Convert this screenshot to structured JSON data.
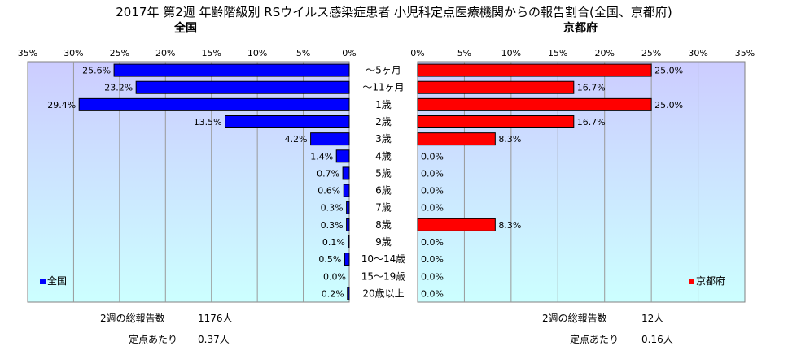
{
  "chart_data": {
    "type": "bar",
    "title": "2017年 第2週 年齢階級別 RSウイルス感染症患者 小児科定点医療機関からの報告割合(全国、京都府)",
    "categories": [
      "～5ヶ月",
      "～11ヶ月",
      "1歳",
      "2歳",
      "3歳",
      "4歳",
      "5歳",
      "6歳",
      "7歳",
      "8歳",
      "9歳",
      "10～14歳",
      "15～19歳",
      "20歳以上"
    ],
    "xlim": [
      0,
      35
    ],
    "ticks": [
      "0%",
      "5%",
      "10%",
      "15%",
      "20%",
      "25%",
      "30%",
      "35%"
    ],
    "series": [
      {
        "name": "全国",
        "color": "#0000ff",
        "values": [
          25.6,
          23.2,
          29.4,
          13.5,
          4.2,
          1.4,
          0.7,
          0.6,
          0.3,
          0.3,
          0.1,
          0.5,
          0.0,
          0.2
        ],
        "labels": [
          "25.6%",
          "23.2%",
          "29.4%",
          "13.5%",
          "4.2%",
          "1.4%",
          "0.7%",
          "0.6%",
          "0.3%",
          "0.3%",
          "0.1%",
          "0.5%",
          "0.0%",
          "0.2%"
        ]
      },
      {
        "name": "京都府",
        "color": "#ff0000",
        "values": [
          25.0,
          16.7,
          25.0,
          16.7,
          8.3,
          0.0,
          0.0,
          0.0,
          0.0,
          8.3,
          0.0,
          0.0,
          0.0,
          0.0
        ],
        "labels": [
          "25.0%",
          "16.7%",
          "25.0%",
          "16.7%",
          "8.3%",
          "0.0%",
          "0.0%",
          "0.0%",
          "0.0%",
          "8.3%",
          "0.0%",
          "0.0%",
          "0.0%",
          "0.0%"
        ]
      }
    ],
    "legend_placement": "bottom-left (each panel)",
    "grid": true
  },
  "panels": {
    "left_title": "全国",
    "right_title": "京都府"
  },
  "footer": {
    "left": {
      "total_label": "2週の総報告数",
      "total_value": "1176人",
      "per_label": "定点あたり",
      "per_value": "0.37人"
    },
    "right": {
      "total_label": "2週の総報告数",
      "total_value": "12人",
      "per_label": "定点あたり",
      "per_value": "0.16人"
    }
  },
  "colors": {
    "plot_bg_top": "#ccccff",
    "plot_bg_bottom": "#ccffff",
    "bar_outline": "#000000",
    "grid": "#999999"
  }
}
